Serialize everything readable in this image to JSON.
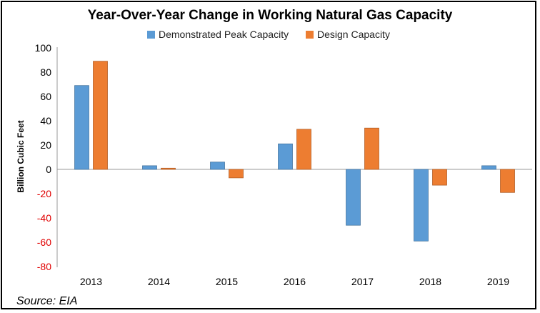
{
  "chart_data": {
    "type": "bar",
    "title": "Year-Over-Year Change in Working Natural Gas Capacity",
    "xlabel": "",
    "ylabel": "Billion Cubic Feet",
    "categories": [
      "2013",
      "2014",
      "2015",
      "2016",
      "2017",
      "2018",
      "2019"
    ],
    "series": [
      {
        "name": "Demonstrated Peak Capacity",
        "color": "#5B9BD5",
        "values": [
          69,
          3,
          6,
          21,
          -46,
          -59,
          3
        ]
      },
      {
        "name": "Design Capacity",
        "color": "#ED7D31",
        "values": [
          89,
          1,
          -7,
          33,
          34,
          -13,
          -19
        ]
      }
    ],
    "ylim": [
      -80,
      100
    ],
    "yticks": [
      100,
      80,
      60,
      40,
      20,
      0,
      -20,
      -40,
      -60,
      -80
    ],
    "ytick_labels": [
      "100",
      "80",
      "60",
      "40",
      "20",
      "0",
      "-20",
      "-40",
      "-60",
      "-80"
    ],
    "negative_tick_color": "#E00000",
    "grid": false,
    "legend_position": "top"
  },
  "source": "Source: EIA"
}
